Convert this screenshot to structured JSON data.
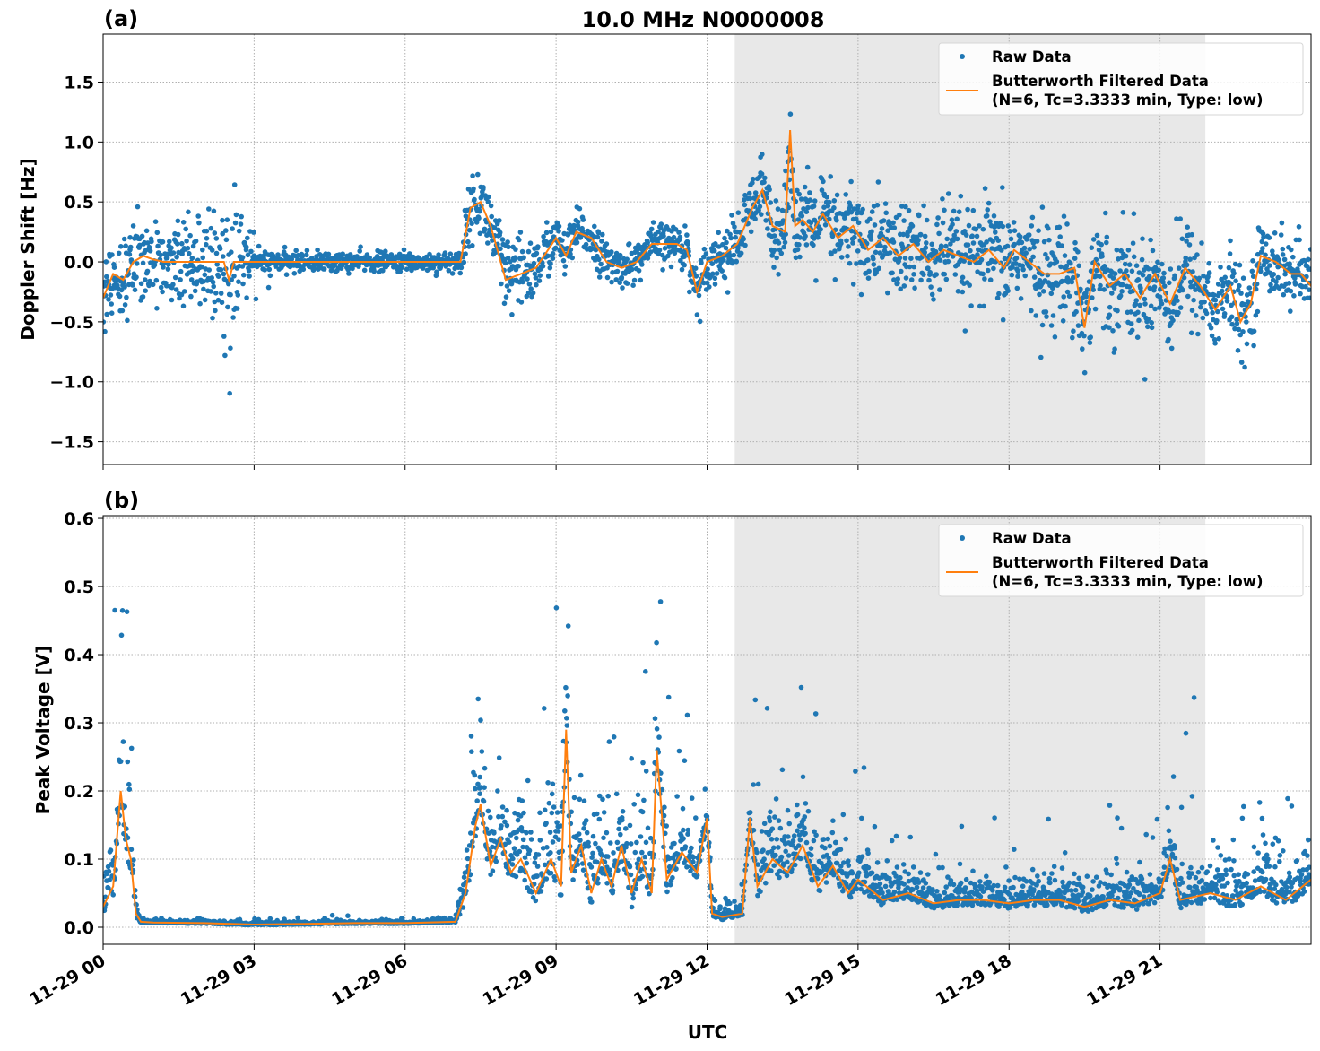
{
  "title": "10.0 MHz N0000008",
  "xlabel": "UTC",
  "x_tick_labels": [
    "11-29 00",
    "11-29 03",
    "11-29 06",
    "11-29 09",
    "11-29 12",
    "11-29 15",
    "11-29 18",
    "11-29 21"
  ],
  "x_tick_hours": [
    0,
    3,
    6,
    9,
    12,
    15,
    18,
    21
  ],
  "xlim_hours": [
    0,
    24
  ],
  "shaded_interval_hours": [
    12.55,
    21.9
  ],
  "colors": {
    "raw": "#1f77b4",
    "filtered": "#ff7f0e",
    "shade": "#e8e8e8"
  },
  "legend": {
    "raw": "Raw Data",
    "filtered_line1": "Butterworth Filtered Data",
    "filtered_line2": "(N=6, Tc=3.3333 min, Type: low)",
    "placement": "top-right"
  },
  "chart_data": [
    {
      "type": "scatter+line",
      "panel_label": "(a)",
      "ylabel": "Doppler Shift [Hz]",
      "ylim": [
        -1.69,
        1.9
      ],
      "yticks": [
        -1.5,
        -1.0,
        -0.5,
        0.0,
        0.5,
        1.0,
        1.5
      ],
      "ytick_labels": [
        "−1.5",
        "−1.0",
        "−0.5",
        "0.0",
        "0.5",
        "1.0",
        "1.5"
      ],
      "grid": true,
      "filtered": {
        "x": [
          0,
          0.2,
          0.4,
          0.6,
          0.8,
          1.0,
          1.2,
          1.5,
          2.0,
          2.4,
          2.5,
          2.6,
          3.0,
          3.5,
          4,
          5,
          6,
          6.9,
          7.1,
          7.3,
          7.5,
          7.7,
          8.0,
          8.3,
          8.6,
          9.0,
          9.2,
          9.4,
          9.7,
          10.0,
          10.3,
          10.6,
          10.9,
          11.1,
          11.4,
          11.6,
          11.8,
          12.0,
          12.3,
          12.6,
          12.9,
          13.1,
          13.3,
          13.55,
          13.65,
          13.75,
          13.9,
          14.1,
          14.3,
          14.6,
          14.9,
          15.2,
          15.5,
          15.8,
          16.1,
          16.4,
          16.7,
          17.0,
          17.3,
          17.6,
          17.9,
          18.1,
          18.4,
          18.7,
          19.0,
          19.3,
          19.5,
          19.7,
          20.0,
          20.3,
          20.6,
          20.9,
          21.2,
          21.5,
          21.8,
          22.1,
          22.4,
          22.6,
          22.8,
          23.0,
          23.3,
          23.6,
          23.8,
          24.0
        ],
        "y": [
          -0.3,
          -0.1,
          -0.15,
          0.0,
          0.05,
          0.02,
          0.0,
          0.0,
          0.0,
          0.0,
          -0.15,
          0.0,
          0.0,
          0.0,
          0.0,
          0.0,
          0.0,
          0.0,
          0.0,
          0.45,
          0.5,
          0.3,
          -0.15,
          -0.1,
          -0.05,
          0.2,
          0.05,
          0.25,
          0.2,
          0.0,
          -0.05,
          0.0,
          0.15,
          0.15,
          0.15,
          0.1,
          -0.25,
          0.0,
          0.05,
          0.15,
          0.45,
          0.6,
          0.3,
          0.25,
          1.1,
          0.3,
          0.35,
          0.25,
          0.4,
          0.2,
          0.3,
          0.1,
          0.2,
          0.05,
          0.15,
          0.0,
          0.1,
          0.05,
          0.0,
          0.1,
          -0.05,
          0.1,
          0.0,
          -0.1,
          -0.1,
          -0.05,
          -0.55,
          0.0,
          -0.2,
          -0.1,
          -0.3,
          -0.1,
          -0.35,
          -0.05,
          -0.2,
          -0.4,
          -0.2,
          -0.5,
          -0.35,
          0.05,
          0.0,
          -0.1,
          -0.1,
          -0.2
        ]
      },
      "raw_spread": {
        "x": [
          0,
          1,
          2,
          2.5,
          3,
          6.9,
          7.3,
          8,
          9,
          10,
          11,
          12,
          12.5,
          13,
          14,
          15,
          17,
          19,
          21,
          22,
          23,
          24
        ],
        "y": [
          0.2,
          0.15,
          0.2,
          0.3,
          0.04,
          0.04,
          0.12,
          0.18,
          0.1,
          0.08,
          0.08,
          0.1,
          0.12,
          0.15,
          0.18,
          0.2,
          0.2,
          0.22,
          0.22,
          0.2,
          0.15,
          0.15
        ]
      }
    },
    {
      "type": "scatter+line",
      "panel_label": "(b)",
      "ylabel": "Peak Voltage [V]",
      "ylim": [
        -0.025,
        0.604
      ],
      "yticks": [
        0.0,
        0.1,
        0.2,
        0.3,
        0.4,
        0.5,
        0.6
      ],
      "ytick_labels": [
        "0.0",
        "0.1",
        "0.2",
        "0.3",
        "0.4",
        "0.5",
        "0.6"
      ],
      "grid": true,
      "filtered": {
        "x": [
          0,
          0.2,
          0.35,
          0.45,
          0.55,
          0.65,
          0.75,
          1,
          2,
          3,
          4,
          5,
          6,
          7.0,
          7.2,
          7.4,
          7.5,
          7.7,
          7.9,
          8.1,
          8.3,
          8.6,
          8.9,
          9.1,
          9.2,
          9.3,
          9.5,
          9.7,
          9.9,
          10.1,
          10.3,
          10.5,
          10.7,
          10.9,
          11.0,
          11.2,
          11.5,
          11.8,
          12.0,
          12.1,
          12.3,
          12.7,
          12.85,
          13.0,
          13.3,
          13.6,
          13.9,
          14.2,
          14.5,
          14.8,
          15.0,
          15.5,
          16,
          16.5,
          17,
          17.5,
          18,
          18.5,
          19,
          19.5,
          20,
          20.5,
          21,
          21.2,
          21.4,
          22,
          22.5,
          23,
          23.5,
          24
        ],
        "y": [
          0.03,
          0.06,
          0.2,
          0.13,
          0.1,
          0.02,
          0.008,
          0.007,
          0.006,
          0.004,
          0.005,
          0.006,
          0.006,
          0.008,
          0.05,
          0.15,
          0.18,
          0.09,
          0.13,
          0.08,
          0.1,
          0.05,
          0.1,
          0.06,
          0.29,
          0.08,
          0.12,
          0.05,
          0.1,
          0.06,
          0.12,
          0.05,
          0.1,
          0.05,
          0.26,
          0.07,
          0.11,
          0.08,
          0.16,
          0.02,
          0.015,
          0.02,
          0.16,
          0.06,
          0.1,
          0.08,
          0.12,
          0.06,
          0.09,
          0.05,
          0.07,
          0.04,
          0.05,
          0.035,
          0.04,
          0.04,
          0.035,
          0.04,
          0.04,
          0.03,
          0.04,
          0.035,
          0.05,
          0.1,
          0.04,
          0.05,
          0.04,
          0.06,
          0.04,
          0.07
        ]
      },
      "raw_spread": {
        "x": [
          0,
          0.4,
          0.7,
          1,
          7,
          7.3,
          8,
          9.2,
          10,
          11,
          12.1,
          12.8,
          13,
          14,
          15,
          16,
          20,
          21,
          22,
          24
        ],
        "y": [
          0.03,
          0.08,
          0.005,
          0.002,
          0.002,
          0.06,
          0.05,
          0.06,
          0.05,
          0.06,
          0.01,
          0.01,
          0.05,
          0.04,
          0.03,
          0.02,
          0.02,
          0.03,
          0.03,
          0.03
        ]
      }
    }
  ]
}
